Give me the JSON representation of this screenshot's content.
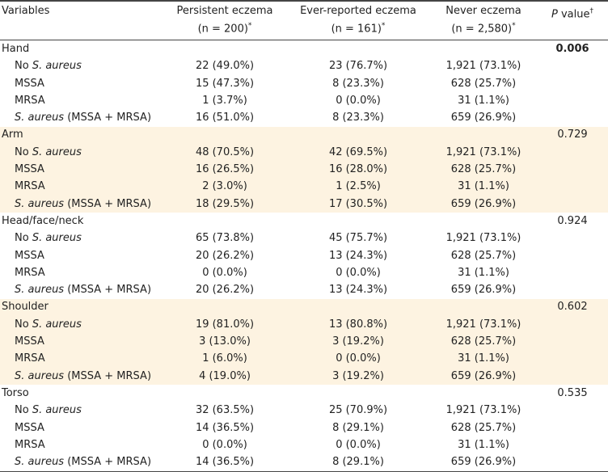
{
  "header": {
    "variables": "Variables",
    "columns": [
      {
        "title": "Persistent eczema",
        "n": "(n = 200)",
        "mark": "*"
      },
      {
        "title": "Ever-reported eczema",
        "n": "(n = 161)",
        "mark": "*"
      },
      {
        "title": "Never eczema",
        "n": "(n = 2,580)",
        "mark": "*"
      }
    ],
    "p_value": {
      "italic": "P",
      "text": "value",
      "mark": "†"
    }
  },
  "groups": [
    {
      "name": "Hand",
      "p_value": "0.006",
      "bold": true,
      "shaded": false,
      "rows": [
        {
          "label": [
            {
              "text": "No"
            },
            {
              "text": "S. aureus",
              "italic": true
            }
          ],
          "values": [
            "22 (49.0%)",
            "23 (76.7%)",
            "1,921 (73.1%)"
          ]
        },
        {
          "label": [
            {
              "text": "MSSA"
            }
          ],
          "values": [
            "15 (47.3%)",
            "8 (23.3%)",
            "628 (25.7%)"
          ]
        },
        {
          "label": [
            {
              "text": "MRSA"
            }
          ],
          "values": [
            "1 (3.7%)",
            "0 (0.0%)",
            "31 (1.1%)"
          ]
        },
        {
          "label": [
            {
              "text": "S. aureus",
              "italic": true
            },
            {
              "text": "(MSSA + MRSA)"
            }
          ],
          "values": [
            "16 (51.0%)",
            "8 (23.3%)",
            "659 (26.9%)"
          ]
        }
      ]
    },
    {
      "name": "Arm",
      "p_value": "0.729",
      "shaded": true,
      "rows": [
        {
          "label": [
            {
              "text": "No"
            },
            {
              "text": "S. aureus",
              "italic": true
            }
          ],
          "values": [
            "48 (70.5%)",
            "42 (69.5%)",
            "1,921 (73.1%)"
          ]
        },
        {
          "label": [
            {
              "text": "MSSA"
            }
          ],
          "values": [
            "16 (26.5%)",
            "16 (28.0%)",
            "628 (25.7%)"
          ]
        },
        {
          "label": [
            {
              "text": "MRSA"
            }
          ],
          "values": [
            "2 (3.0%)",
            "1 (2.5%)",
            "31 (1.1%)"
          ]
        },
        {
          "label": [
            {
              "text": "S. aureus",
              "italic": true
            },
            {
              "text": "(MSSA + MRSA)"
            }
          ],
          "values": [
            "18 (29.5%)",
            "17 (30.5%)",
            "659 (26.9%)"
          ]
        }
      ]
    },
    {
      "name": "Head/face/neck",
      "p_value": "0.924",
      "shaded": false,
      "rows": [
        {
          "label": [
            {
              "text": "No"
            },
            {
              "text": "S. aureus",
              "italic": true
            }
          ],
          "values": [
            "65 (73.8%)",
            "45 (75.7%)",
            "1,921 (73.1%)"
          ]
        },
        {
          "label": [
            {
              "text": "MSSA"
            }
          ],
          "values": [
            "20 (26.2%)",
            "13 (24.3%)",
            "628 (25.7%)"
          ]
        },
        {
          "label": [
            {
              "text": "MRSA"
            }
          ],
          "values": [
            "0 (0.0%)",
            "0 (0.0%)",
            "31 (1.1%)"
          ]
        },
        {
          "label": [
            {
              "text": "S. aureus",
              "italic": true
            },
            {
              "text": "(MSSA + MRSA)"
            }
          ],
          "values": [
            "20 (26.2%)",
            "13 (24.3%)",
            "659 (26.9%)"
          ]
        }
      ]
    },
    {
      "name": "Shoulder",
      "p_value": "0.602",
      "shaded": true,
      "rows": [
        {
          "label": [
            {
              "text": "No"
            },
            {
              "text": "S. aureus",
              "italic": true
            }
          ],
          "values": [
            "19 (81.0%)",
            "13 (80.8%)",
            "1,921 (73.1%)"
          ]
        },
        {
          "label": [
            {
              "text": "MSSA"
            }
          ],
          "values": [
            "3 (13.0%)",
            "3 (19.2%)",
            "628 (25.7%)"
          ]
        },
        {
          "label": [
            {
              "text": "MRSA"
            }
          ],
          "values": [
            "1 (6.0%)",
            "0 (0.0%)",
            "31 (1.1%)"
          ]
        },
        {
          "label": [
            {
              "text": "S. aureus",
              "italic": true
            },
            {
              "text": "(MSSA + MRSA)"
            }
          ],
          "values": [
            "4 (19.0%)",
            "3 (19.2%)",
            "659 (26.9%)"
          ]
        }
      ]
    },
    {
      "name": "Torso",
      "p_value": "0.535",
      "shaded": false,
      "rows": [
        {
          "label": [
            {
              "text": "No"
            },
            {
              "text": "S. aureus",
              "italic": true
            }
          ],
          "values": [
            "32 (63.5%)",
            "25 (70.9%)",
            "1,921 (73.1%)"
          ]
        },
        {
          "label": [
            {
              "text": "MSSA"
            }
          ],
          "values": [
            "14 (36.5%)",
            "8 (29.1%)",
            "628 (25.7%)"
          ]
        },
        {
          "label": [
            {
              "text": "MRSA"
            }
          ],
          "values": [
            "0 (0.0%)",
            "0 (0.0%)",
            "31 (1.1%)"
          ]
        },
        {
          "label": [
            {
              "text": "S. aureus",
              "italic": true
            },
            {
              "text": "(MSSA + MRSA)"
            }
          ],
          "values": [
            "14 (36.5%)",
            "8 (29.1%)",
            "659 (26.9%)"
          ]
        }
      ]
    }
  ]
}
